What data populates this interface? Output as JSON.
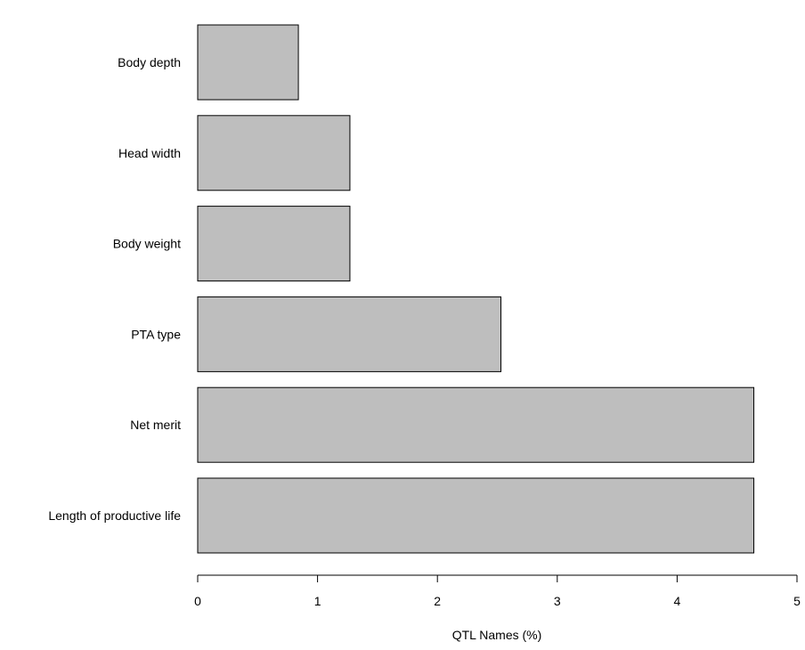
{
  "chart_data": {
    "type": "bar",
    "orientation": "horizontal",
    "categories": [
      "Body depth",
      "Head width",
      "Body weight",
      "PTA type",
      "Net merit",
      "Length of productive life"
    ],
    "values": [
      0.84,
      1.27,
      1.27,
      2.53,
      4.64,
      4.64
    ],
    "title": "",
    "xlabel": "QTL Names (%)",
    "ylabel": "",
    "xlim": [
      0,
      5
    ],
    "xticks": [
      "0",
      "1",
      "2",
      "3",
      "4",
      "5"
    ],
    "grid": false,
    "legend": "none",
    "colors": {
      "bar_fill": "#bebebe",
      "bar_stroke": "#000000",
      "axis": "#000000"
    }
  }
}
